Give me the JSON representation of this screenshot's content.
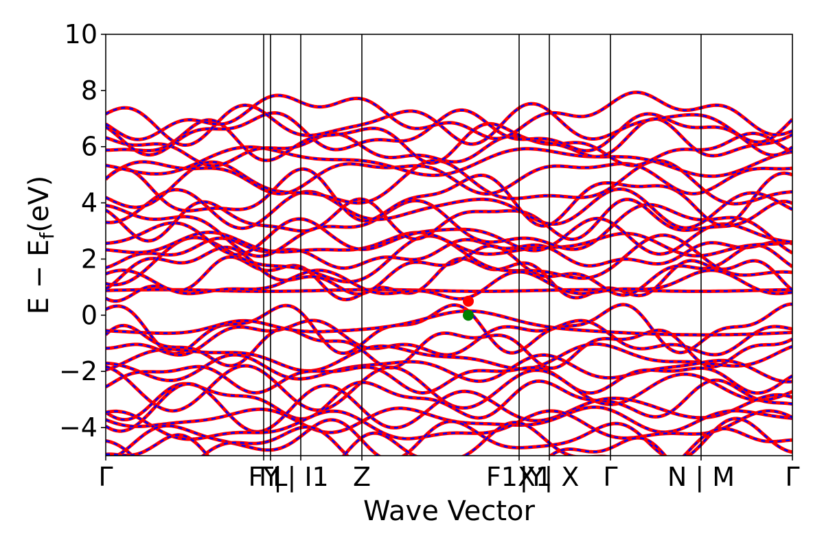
{
  "chart_data": {
    "type": "line",
    "title": "",
    "xlabel": "Wave Vector",
    "ylabel": "E − E_f (eV)",
    "ylabel_parts": {
      "main": "E − E",
      "sub": "f",
      "unit": "(eV)"
    },
    "ylim": [
      -5,
      10
    ],
    "yticks": [
      {
        "value": 10,
        "label": "10"
      },
      {
        "value": 8,
        "label": "8"
      },
      {
        "value": 6,
        "label": "6"
      },
      {
        "value": 4,
        "label": "4"
      },
      {
        "value": 2,
        "label": "2"
      },
      {
        "value": 0,
        "label": "0"
      },
      {
        "value": -2,
        "label": "−2"
      },
      {
        "value": -4,
        "label": "−4"
      }
    ],
    "grid": false,
    "legend": "none",
    "xlim": [
      0,
      1
    ],
    "kpath_ticks": [
      {
        "x": 0.0,
        "label": "Γ"
      },
      {
        "x": 0.23,
        "label": "FY"
      },
      {
        "x": 0.24,
        "label": "Γ|"
      },
      {
        "x": 0.284,
        "label": "L| I1"
      },
      {
        "x": 0.373,
        "label": "Z"
      },
      {
        "x": 0.602,
        "label": "F1X1"
      },
      {
        "x": 0.646,
        "label": "|Y| X"
      },
      {
        "x": 0.735,
        "label": "Γ"
      },
      {
        "x": 0.867,
        "label": "N | M"
      },
      {
        "x": 1.0,
        "label": "Γ"
      }
    ],
    "segment_boundaries": [
      0.23,
      0.24,
      0.284,
      0.373,
      0.602,
      0.646,
      0.735,
      0.867
    ],
    "series": [
      {
        "color": "#ff0000",
        "style": "solid"
      },
      {
        "color": "#0000ff",
        "style": "dashed"
      }
    ],
    "band_edges": {
      "vbm": {
        "x": 0.528,
        "y": 0.0,
        "color": "#008000"
      },
      "cbm": {
        "x": 0.528,
        "y": 0.5,
        "color": "#ff0000"
      }
    },
    "flat_band": 0.88,
    "bands_approx": {
      "valence_top": [
        -0.6,
        -0.8,
        -0.75,
        -0.05,
        -0.6,
        -0.65,
        -0.7,
        -0.65,
        -0.7,
        -0.55,
        -0.5
      ],
      "conduction_bottom": [
        0.9,
        0.75,
        0.5,
        1.1,
        1.0,
        0.7,
        1.0,
        1.1,
        1.0,
        1.2,
        1.0
      ]
    }
  }
}
